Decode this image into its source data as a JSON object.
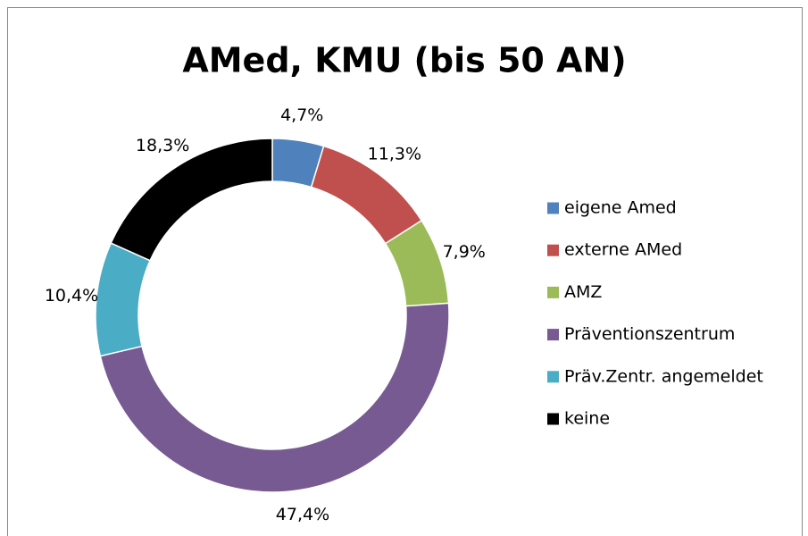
{
  "chart_data": {
    "type": "pie",
    "title": "AMed, KMU (bis 50 AN)",
    "categories": [
      "eigene Amed",
      "externe AMed",
      "AMZ",
      "Präventionszentrum",
      "Präv.Zentr. angemeldet",
      "keine"
    ],
    "values": [
      4.7,
      11.3,
      7.9,
      47.4,
      10.4,
      18.3
    ],
    "value_labels": [
      "4,7%",
      "11,3%",
      "7,9%",
      "47,4%",
      "10,4%",
      "18,3%"
    ],
    "colors": [
      "#4f81bd",
      "#c0504d",
      "#9bbb59",
      "#775a92",
      "#4bacc6",
      "#000000"
    ],
    "legend": "right"
  }
}
